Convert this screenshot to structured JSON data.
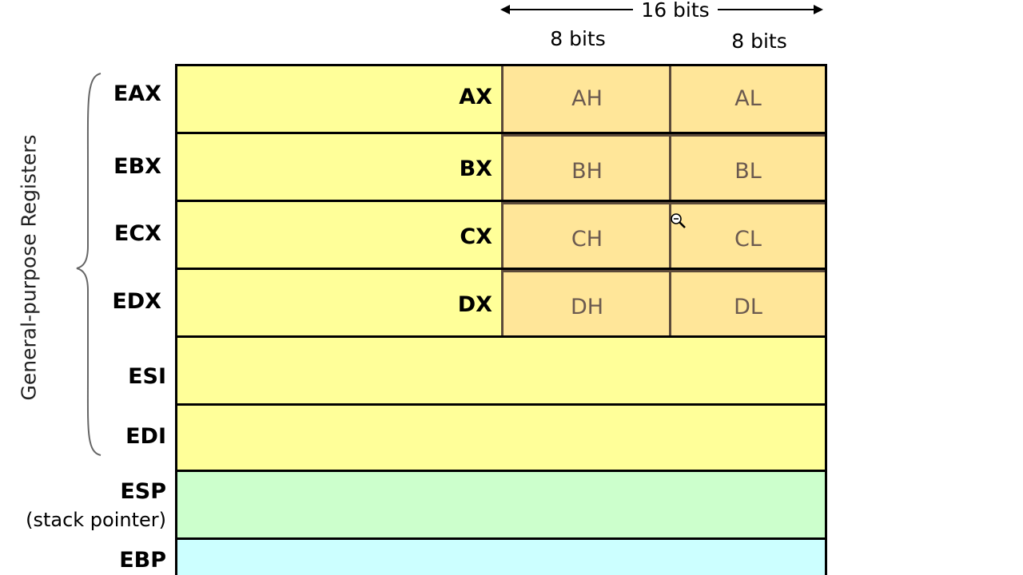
{
  "header": {
    "width_16": "16 bits",
    "width_8_left": "8 bits",
    "width_8_right": "8 bits"
  },
  "side_label": "General-purpose Registers",
  "registers": [
    {
      "name": "EAX",
      "x": "AX",
      "high": "AH",
      "low": "AL"
    },
    {
      "name": "EBX",
      "x": "BX",
      "high": "BH",
      "low": "BL"
    },
    {
      "name": "ECX",
      "x": "CX",
      "high": "CH",
      "low": "CL"
    },
    {
      "name": "EDX",
      "x": "DX",
      "high": "DH",
      "low": "DL"
    },
    {
      "name": "ESI"
    },
    {
      "name": "EDI"
    },
    {
      "name": "ESP",
      "note": "(stack pointer)"
    },
    {
      "name": "EBP"
    }
  ],
  "colors": {
    "general": "#ffff99",
    "sixteen_bit": "#ffe699",
    "stack_pointer": "#ccffcc",
    "base_pointer": "#ccffff"
  },
  "cursor": "zoom-out-icon"
}
